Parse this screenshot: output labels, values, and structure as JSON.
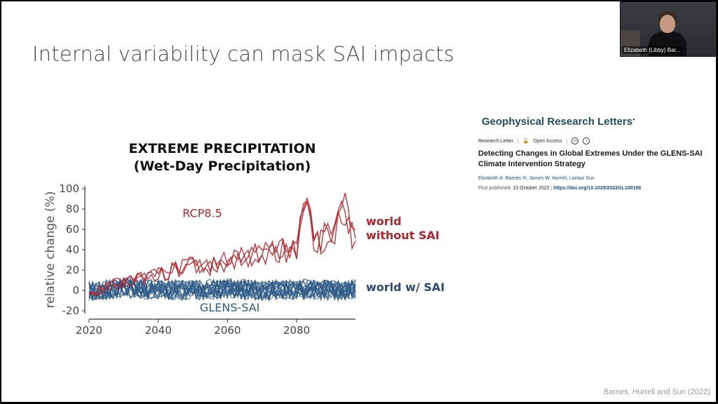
{
  "slide": {
    "title": "Internal variability can mask SAI impacts",
    "citation": "Barnes, Hurrell and Sun (2022)"
  },
  "video": {
    "participant_name": "Elizabeth (Libby) Bar..."
  },
  "figure": {
    "title_line1": "EXTREME PRECIPITATION",
    "title_line2": "(Wet-Day Precipitation)",
    "label_without": "world\nwithout SAI",
    "label_with": "world w/ SAI"
  },
  "paper": {
    "journal": "Geophysical Research Letters",
    "article_type": "Research Letter",
    "open_access": "Open Access",
    "title": "Detecting Changes in Global Extremes Under the GLENS-SAI Climate Intervention Strategy",
    "authors": "Elizabeth A. Barnes",
    "authors_rest": ", James W. Hurrell, Lantao Sun",
    "first_published_label": "First published:",
    "first_published_date": "10 October 2022",
    "doi": "https://doi.org/10.1029/2022GL100198"
  },
  "colors": {
    "rcp": "#b3262b",
    "glens": "#2c5a85"
  },
  "chart_data": {
    "type": "line",
    "ylabel": "relative change (%)",
    "xlim": [
      2020,
      2097
    ],
    "ylim": [
      -20,
      100
    ],
    "xticks": [
      2020,
      2040,
      2060,
      2080
    ],
    "yticks": [
      -20,
      0,
      20,
      40,
      60,
      80,
      100
    ],
    "series": [
      {
        "name": "RCP8.5",
        "color": "#b3262b",
        "ensemble_members": 3,
        "x": [
          2020,
          2025,
          2030,
          2035,
          2040,
          2045,
          2050,
          2055,
          2060,
          2065,
          2070,
          2075,
          2080,
          2083,
          2085,
          2090,
          2094,
          2097
        ],
        "values": [
          -3,
          3,
          8,
          12,
          15,
          20,
          25,
          22,
          28,
          33,
          36,
          40,
          42,
          95,
          45,
          55,
          80,
          45
        ]
      },
      {
        "name": "GLENS-SAI",
        "color": "#2c5a85",
        "ensemble_members": 20,
        "x": [
          2020,
          2030,
          2040,
          2050,
          2060,
          2070,
          2080,
          2090,
          2097
        ],
        "values": [
          0,
          2,
          1,
          0,
          2,
          0,
          1,
          0,
          1
        ]
      }
    ]
  }
}
